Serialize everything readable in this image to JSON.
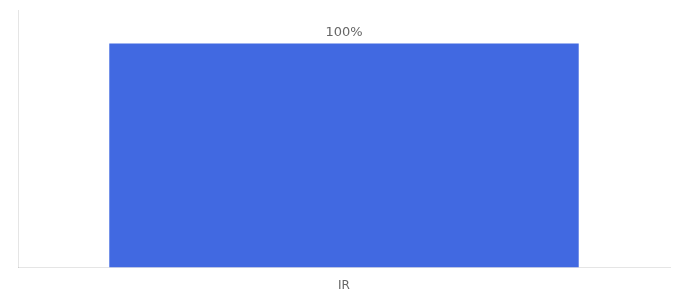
{
  "chart_data": {
    "type": "bar",
    "categories": [
      "IR"
    ],
    "values": [
      100
    ],
    "value_labels": [
      "100%"
    ],
    "color": "#4169e1",
    "ylim": [
      0,
      115
    ],
    "grid": false,
    "data_labels": true,
    "tick_labels": "x"
  }
}
